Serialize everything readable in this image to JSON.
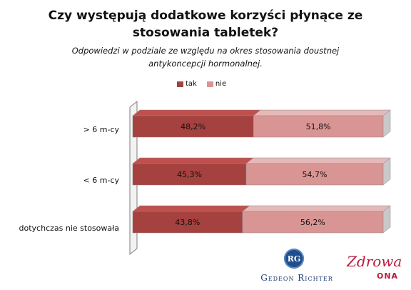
{
  "chart_data": {
    "type": "bar",
    "orientation": "horizontal",
    "stacked": true,
    "percent_stacked": true,
    "title": "Czy występują dodatkowe korzyści płynące ze stosowania tabletek?",
    "subtitle": "Odpowiedzi w podziale ze względu na okres stosowania doustnej antykoncepcji hormonalnej.",
    "categories": [
      "> 6 m-cy",
      "< 6 m-cy",
      "dotychczas nie stosowała"
    ],
    "series": [
      {
        "name": "tak",
        "values": [
          48.2,
          45.3,
          43.8
        ],
        "labels": [
          "48,2%",
          "45,3%",
          "43,8%"
        ],
        "color": "#a5413f"
      },
      {
        "name": "nie",
        "values": [
          51.8,
          54.7,
          56.2
        ],
        "labels": [
          "51,8%",
          "54,7%",
          "56,2%"
        ],
        "color": "#d99594"
      }
    ],
    "xlim": [
      0,
      100
    ],
    "legend_position": "top",
    "grid": false
  },
  "title_lines": [
    "Czy występują dodatkowe korzyści płynące ze",
    "stosowania tabletek?"
  ],
  "subtitle_lines": [
    "Odpowiedzi w podziale ze względu na okres stosowania doustnej",
    "antykoncepcji hormonalnej."
  ],
  "logos": {
    "richter_badge": "RG",
    "richter_name": "Gedeon Richter",
    "zdrowa_script": "Zdrowa",
    "zdrowa_ona": "ONA"
  },
  "colors": {
    "tak_front": "#a5413f",
    "tak_top": "#c0504d",
    "nie_front": "#d99594",
    "nie_top": "#e6b9b8",
    "end_cap": "#c9c9c9"
  }
}
